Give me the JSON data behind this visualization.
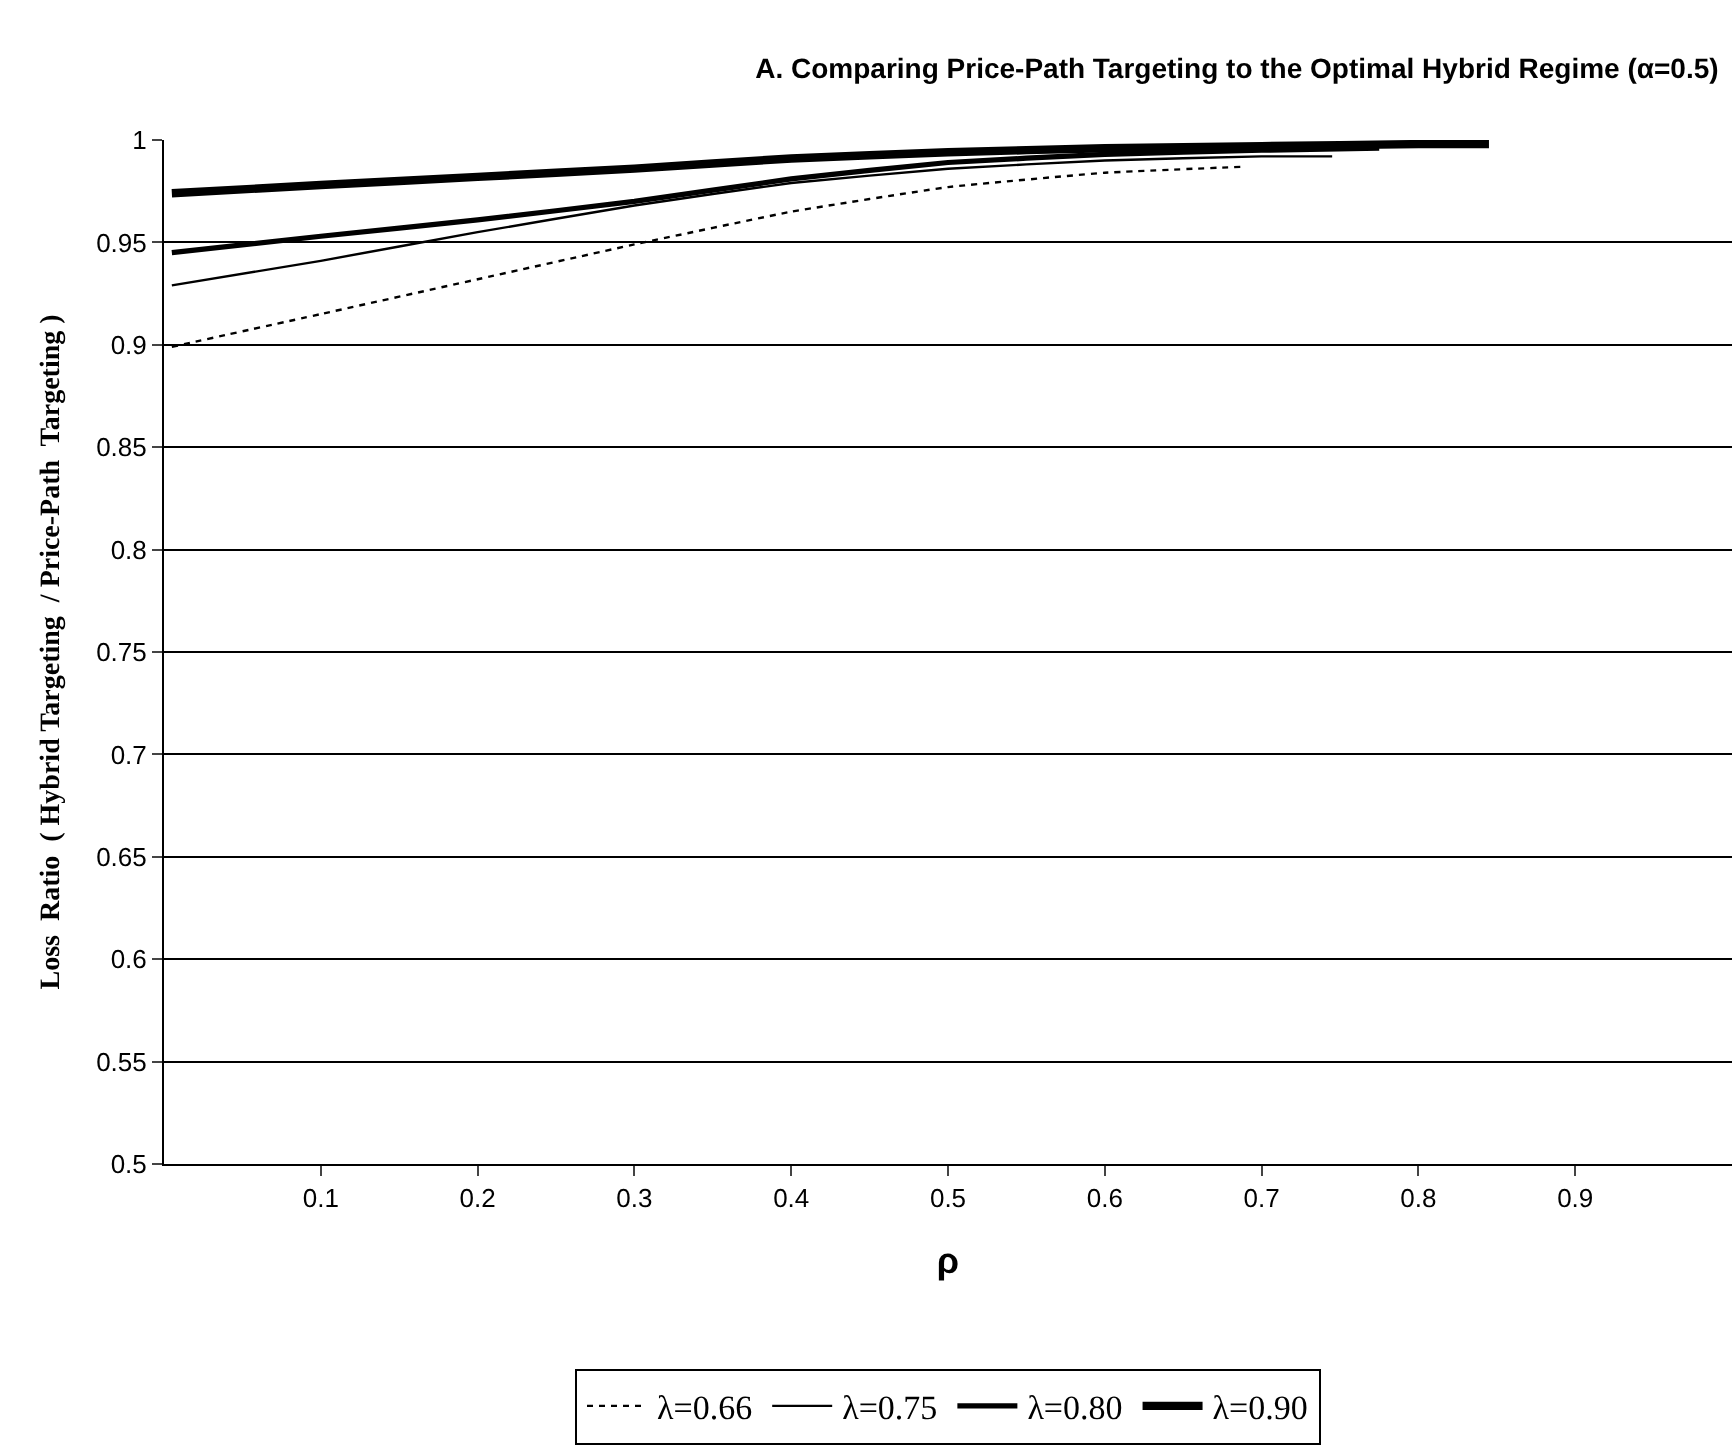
{
  "chart_data": {
    "type": "line",
    "title": "A. Comparing Price-Path Targeting to the Optimal Hybrid Regime (α=0.5)",
    "xlabel": "ρ",
    "ylabel": "Loss  Ratio  ( Hybrid Targeting  / Price-Path  Targeting )",
    "xlim": [
      0,
      1
    ],
    "ylim": [
      0.5,
      1
    ],
    "xticks": [
      0.1,
      0.2,
      0.3,
      0.4,
      0.5,
      0.6,
      0.7,
      0.8,
      0.9
    ],
    "yticks": [
      0.5,
      0.55,
      0.6,
      0.65,
      0.7,
      0.75,
      0.8,
      0.85,
      0.9,
      0.95,
      1
    ],
    "grid": "y",
    "legend": "bottom",
    "marker": "none",
    "series": [
      {
        "name": "λ=0.66",
        "color": "#000000",
        "line_style": "dotted",
        "x": [
          0.005,
          0.1,
          0.2,
          0.3,
          0.4,
          0.5,
          0.6,
          0.69
        ],
        "values": [
          0.899,
          0.915,
          0.932,
          0.949,
          0.965,
          0.977,
          0.984,
          0.987
        ]
      },
      {
        "name": "λ=0.75",
        "color": "#000000",
        "line_style": "solid",
        "x": [
          0.005,
          0.1,
          0.2,
          0.3,
          0.4,
          0.5,
          0.6,
          0.7,
          0.745
        ],
        "values": [
          0.929,
          0.941,
          0.955,
          0.968,
          0.979,
          0.986,
          0.99,
          0.992,
          0.992
        ]
      },
      {
        "name": "λ=0.80",
        "color": "#000000",
        "line_style": "solid",
        "x": [
          0.005,
          0.1,
          0.2,
          0.3,
          0.4,
          0.5,
          0.6,
          0.7,
          0.775
        ],
        "values": [
          0.945,
          0.953,
          0.961,
          0.97,
          0.981,
          0.989,
          0.993,
          0.995,
          0.996
        ]
      },
      {
        "name": "λ=0.90",
        "color": "#000000",
        "line_style": "solid",
        "x": [
          0.005,
          0.1,
          0.2,
          0.3,
          0.4,
          0.5,
          0.6,
          0.7,
          0.8,
          0.845
        ],
        "values": [
          0.974,
          0.978,
          0.982,
          0.986,
          0.991,
          0.994,
          0.996,
          0.997,
          0.998,
          0.998
        ]
      }
    ]
  }
}
